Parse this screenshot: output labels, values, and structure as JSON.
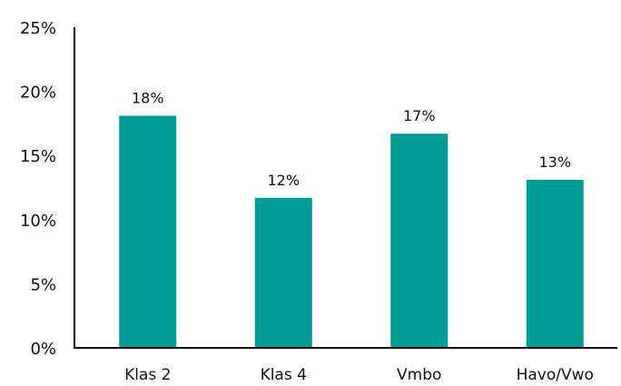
{
  "chart_data": {
    "type": "bar",
    "categories": [
      "Klas 2",
      "Klas 4",
      "Vmbo",
      "Havo/Vwo"
    ],
    "values": [
      18.1,
      11.7,
      16.7,
      13.1
    ],
    "data_labels": [
      "18%",
      "12%",
      "17%",
      "13%"
    ],
    "y_ticks": [
      {
        "value": 0,
        "label": "0%"
      },
      {
        "value": 5,
        "label": "5%"
      },
      {
        "value": 10,
        "label": "10%"
      },
      {
        "value": 15,
        "label": "15%"
      },
      {
        "value": 20,
        "label": "20%"
      },
      {
        "value": 25,
        "label": "25%"
      }
    ],
    "ylim": [
      0,
      25
    ],
    "grid": false,
    "legend": "none",
    "bar_color": "#009B95",
    "axis_color": "#000000"
  }
}
